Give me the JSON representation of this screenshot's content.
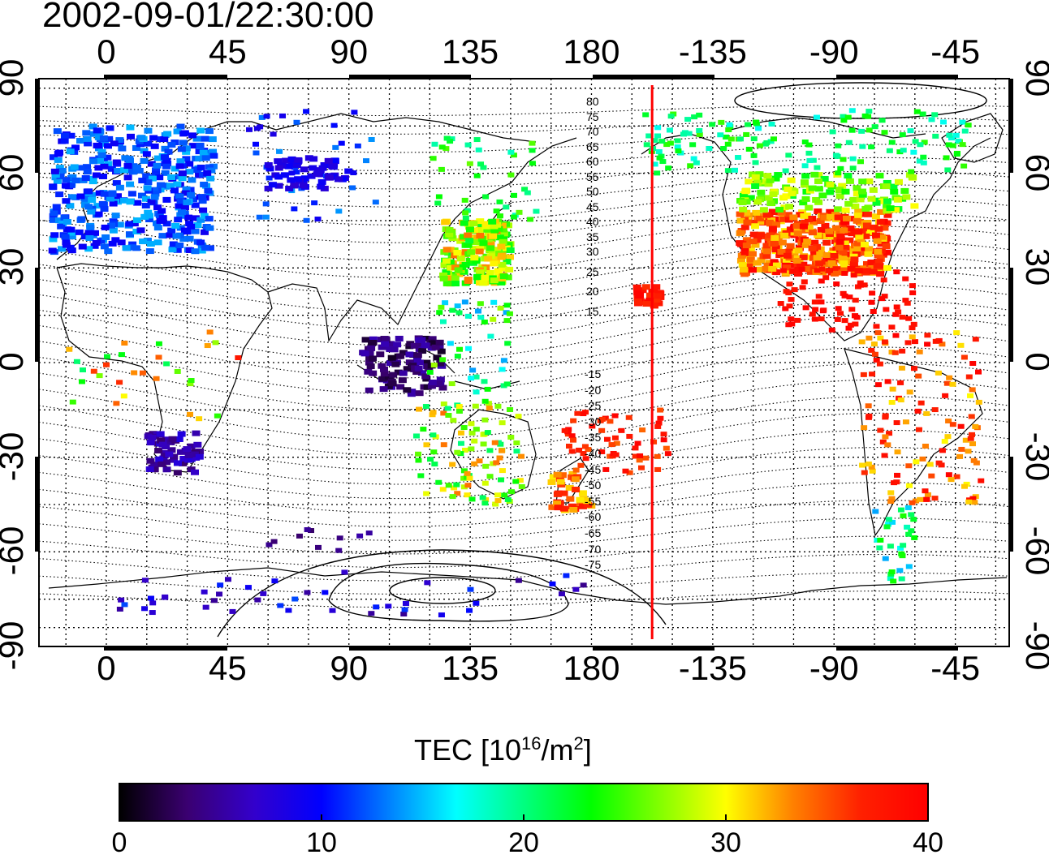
{
  "title": "2002-09-01/22:30:00",
  "lon_ticks": [
    "0",
    "45",
    "90",
    "135",
    "180",
    "-135",
    "-90",
    "-45"
  ],
  "lat_ticks": [
    "90",
    "60",
    "30",
    "0",
    "-30",
    "-60",
    "-90"
  ],
  "mlat_labels_north": [
    "80",
    "75",
    "70",
    "65",
    "60",
    "55",
    "50",
    "45",
    "40",
    "35",
    "30",
    "25",
    "20",
    "15"
  ],
  "mlat_labels_south": [
    "-15",
    "-20",
    "-25",
    "-30",
    "-35",
    "-40",
    "-45",
    "-50",
    "-55",
    "-60",
    "-65",
    "-70",
    "-75"
  ],
  "colorbar": {
    "title_prefix": "TEC  [10",
    "title_exp1": "16",
    "title_mid": "/m",
    "title_exp2": "2",
    "title_suffix": "]",
    "labels": [
      "0",
      "10",
      "20",
      "30",
      "40"
    ],
    "min": 0,
    "max": 40,
    "colors": [
      "#000000",
      "#3a0070",
      "#3300cc",
      "#0000ff",
      "#0080ff",
      "#00ffff",
      "#00ff80",
      "#00ff00",
      "#80ff00",
      "#ffff00",
      "#ff8000",
      "#ff2000",
      "#ff0000"
    ]
  },
  "terminator_longitude": -157.5,
  "terminator_color": "#ff0000",
  "map_extent": {
    "lon_west": -25,
    "lat_north": 90,
    "lat_south": -90
  }
}
